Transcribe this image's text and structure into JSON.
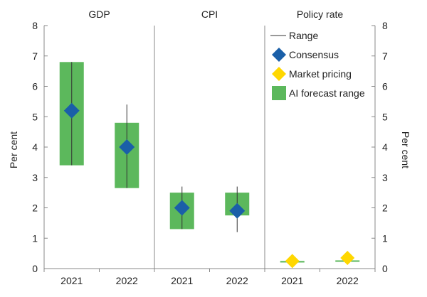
{
  "chart_data": {
    "type": "range",
    "ylabel_left": "Per cent",
    "ylabel_right": "Per cent",
    "ylim": [
      0,
      8
    ],
    "yticks": [
      0,
      1,
      2,
      3,
      4,
      5,
      6,
      7,
      8
    ],
    "grid": false,
    "legend_position": "top-right",
    "legend": [
      {
        "key": "range",
        "label": "Range"
      },
      {
        "key": "consensus",
        "label": "Consensus"
      },
      {
        "key": "market",
        "label": "Market pricing"
      },
      {
        "key": "ai",
        "label": "AI forecast range"
      }
    ],
    "colors": {
      "ai": "#5cb85c",
      "consensus": "#1a5fa8",
      "market": "#ffd700",
      "range": "#333333",
      "axis": "#888888"
    },
    "panels": [
      {
        "title": "GDP",
        "categories": [
          "2021",
          "2022"
        ],
        "range": [
          [
            3.4,
            6.8
          ],
          [
            2.65,
            5.4
          ]
        ],
        "ai_forecast_range": [
          [
            3.4,
            6.8
          ],
          [
            2.65,
            4.8
          ]
        ],
        "consensus": [
          5.2,
          4.0
        ],
        "market_pricing": [
          null,
          null
        ]
      },
      {
        "title": "CPI",
        "categories": [
          "2021",
          "2022"
        ],
        "range": [
          [
            1.3,
            2.7
          ],
          [
            1.2,
            2.7
          ]
        ],
        "ai_forecast_range": [
          [
            1.3,
            2.5
          ],
          [
            1.75,
            2.5
          ]
        ],
        "consensus": [
          2.0,
          1.9
        ],
        "market_pricing": [
          null,
          null
        ]
      },
      {
        "title": "Policy rate",
        "categories": [
          "2021",
          "2022"
        ],
        "range": [
          [
            0.15,
            0.3
          ],
          [
            0.25,
            0.45
          ]
        ],
        "ai_forecast_range": [
          [
            0.2,
            0.25
          ],
          [
            0.23,
            0.27
          ]
        ],
        "consensus": [
          null,
          null
        ],
        "market_pricing": [
          0.25,
          0.35
        ]
      }
    ]
  }
}
